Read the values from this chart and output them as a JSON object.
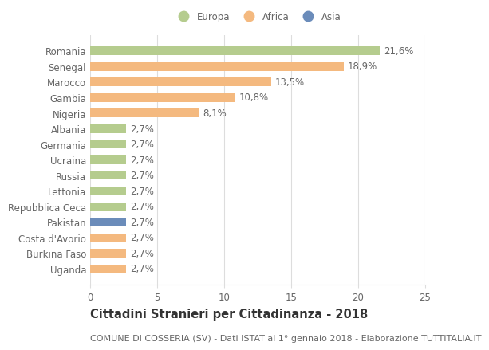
{
  "countries": [
    "Romania",
    "Senegal",
    "Marocco",
    "Gambia",
    "Nigeria",
    "Albania",
    "Germania",
    "Ucraina",
    "Russia",
    "Lettonia",
    "Repubblica Ceca",
    "Pakistan",
    "Costa d'Avorio",
    "Burkina Faso",
    "Uganda"
  ],
  "values": [
    21.6,
    18.9,
    13.5,
    10.8,
    8.1,
    2.7,
    2.7,
    2.7,
    2.7,
    2.7,
    2.7,
    2.7,
    2.7,
    2.7,
    2.7
  ],
  "labels": [
    "21,6%",
    "18,9%",
    "13,5%",
    "10,8%",
    "8,1%",
    "2,7%",
    "2,7%",
    "2,7%",
    "2,7%",
    "2,7%",
    "2,7%",
    "2,7%",
    "2,7%",
    "2,7%",
    "2,7%"
  ],
  "colors": [
    "#b5cc8e",
    "#f4b97f",
    "#f4b97f",
    "#f4b97f",
    "#f4b97f",
    "#b5cc8e",
    "#b5cc8e",
    "#b5cc8e",
    "#b5cc8e",
    "#b5cc8e",
    "#b5cc8e",
    "#6b8cba",
    "#f4b97f",
    "#f4b97f",
    "#f4b97f"
  ],
  "legend_labels": [
    "Europa",
    "Africa",
    "Asia"
  ],
  "legend_colors": [
    "#b5cc8e",
    "#f4b97f",
    "#6b8cba"
  ],
  "xlim": [
    0,
    25
  ],
  "xticks": [
    0,
    5,
    10,
    15,
    20,
    25
  ],
  "title": "Cittadini Stranieri per Cittadinanza - 2018",
  "subtitle": "COMUNE DI COSSERIA (SV) - Dati ISTAT al 1° gennaio 2018 - Elaborazione TUTTITALIA.IT",
  "background_color": "#ffffff",
  "bar_height": 0.55,
  "grid_color": "#dddddd",
  "text_color": "#666666",
  "label_fontsize": 8.5,
  "tick_fontsize": 8.5,
  "title_fontsize": 10.5,
  "subtitle_fontsize": 8.0
}
